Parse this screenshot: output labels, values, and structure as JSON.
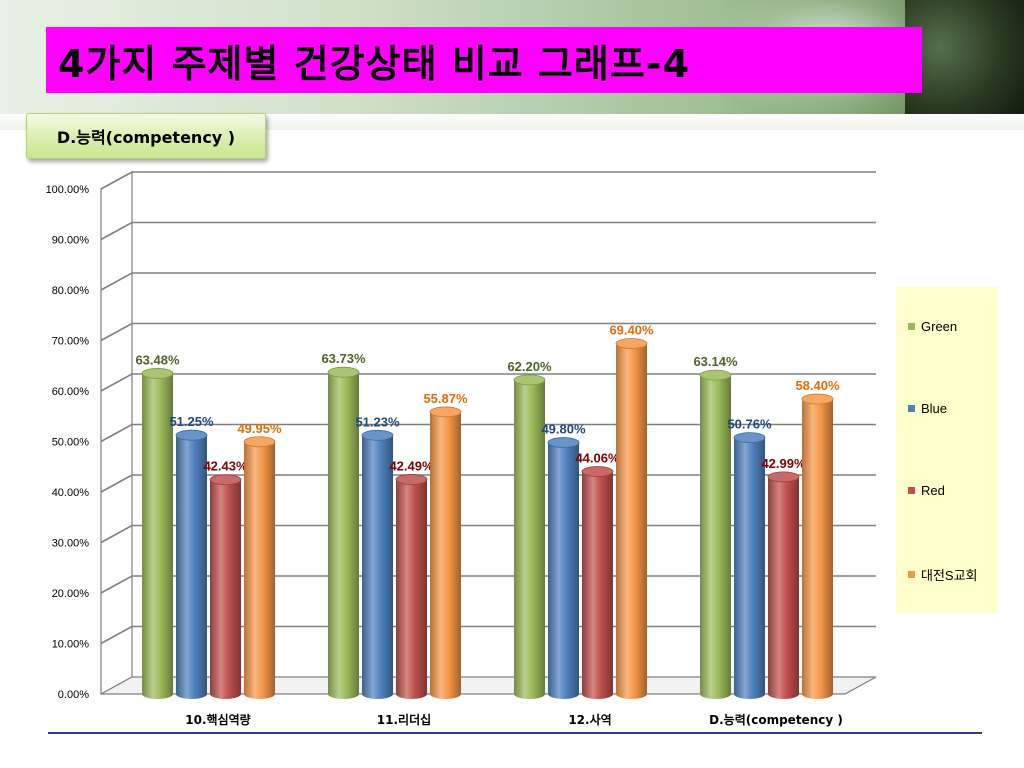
{
  "header": {
    "title": "4가지 주제별 건강상태 비교 그래프-4",
    "subtitle": "D.능력(competency )"
  },
  "legend": {
    "items": [
      {
        "label": "Green",
        "color": "#9bbb59"
      },
      {
        "label": "Blue",
        "color": "#4f81bd"
      },
      {
        "label": "Red",
        "color": "#c0504d"
      },
      {
        "label": "대전S교회",
        "color": "#f79646"
      }
    ]
  },
  "chart_data": {
    "type": "bar",
    "title": "",
    "xlabel": "",
    "ylabel": "",
    "ylim": [
      0,
      100
    ],
    "y_ticks": [
      "0.00%",
      "10.00%",
      "20.00%",
      "30.00%",
      "40.00%",
      "50.00%",
      "60.00%",
      "70.00%",
      "80.00%",
      "90.00%",
      "100.00%"
    ],
    "grid": true,
    "legend_position": "right",
    "categories": [
      "10.핵심역량",
      "11.리더십",
      "12.사역",
      "D.능력(competency )"
    ],
    "series": [
      {
        "name": "Green",
        "color": "#9bbb59",
        "label_color": "#4f6228",
        "values": [
          63.48,
          63.73,
          62.2,
          63.14
        ],
        "labels": [
          "63.48%",
          "63.73%",
          "62.20%",
          "63.14%"
        ]
      },
      {
        "name": "Blue",
        "color": "#4f81bd",
        "label_color": "#1f497d",
        "values": [
          51.25,
          51.23,
          49.8,
          50.76
        ],
        "labels": [
          "51.25%",
          "51.23%",
          "49.80%",
          "50.76%"
        ]
      },
      {
        "name": "Red",
        "color": "#c0504d",
        "label_color": "#7f0000",
        "values": [
          42.43,
          42.49,
          44.06,
          42.99
        ],
        "labels": [
          "42.43%",
          "42.49%",
          "44.06%",
          "42.99%"
        ]
      },
      {
        "name": "대전S교회",
        "color": "#f79646",
        "label_color": "#e46c0a",
        "values": [
          49.95,
          55.87,
          69.4,
          58.4
        ],
        "labels": [
          "49.95%",
          "55.87%",
          "69.40%",
          "58.40%"
        ]
      }
    ]
  }
}
